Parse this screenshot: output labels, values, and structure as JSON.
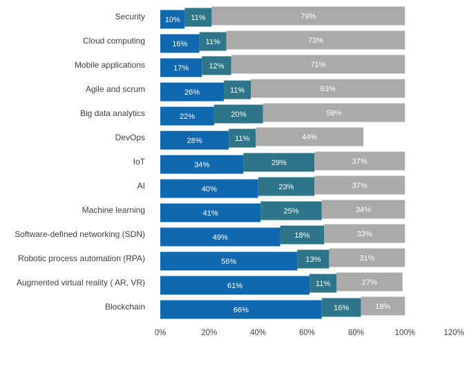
{
  "chart_data": {
    "type": "bar",
    "orientation": "horizontal",
    "stacked": true,
    "categories": [
      "Security",
      "Cloud computing",
      "Mobile applications",
      "Agile and scrum",
      "Big data analytics",
      "DevOps",
      "IoT",
      "AI",
      "Machine learning",
      "Software-defined networking (SDN)",
      "Robotic process automation (RPA)",
      "Augmented virtual reality ( AR, VR)",
      "Blockchain"
    ],
    "series": [
      {
        "values": [
          10,
          16,
          17,
          26,
          22,
          28,
          34,
          40,
          41,
          49,
          56,
          61,
          66
        ],
        "color": "#1068b0"
      },
      {
        "values": [
          11,
          11,
          12,
          11,
          20,
          11,
          29,
          23,
          25,
          18,
          13,
          11,
          16
        ],
        "color": "#2d7589"
      },
      {
        "values": [
          79,
          73,
          71,
          63,
          58,
          44,
          37,
          37,
          34,
          33,
          31,
          27,
          18
        ],
        "color": "#aaaaaa"
      }
    ],
    "xlim": [
      0,
      120
    ],
    "xticks": [
      "0%",
      "20%",
      "40%",
      "60%",
      "80%",
      "100%",
      "120%"
    ],
    "value_suffix": "%",
    "grid": false,
    "legend": "none"
  }
}
